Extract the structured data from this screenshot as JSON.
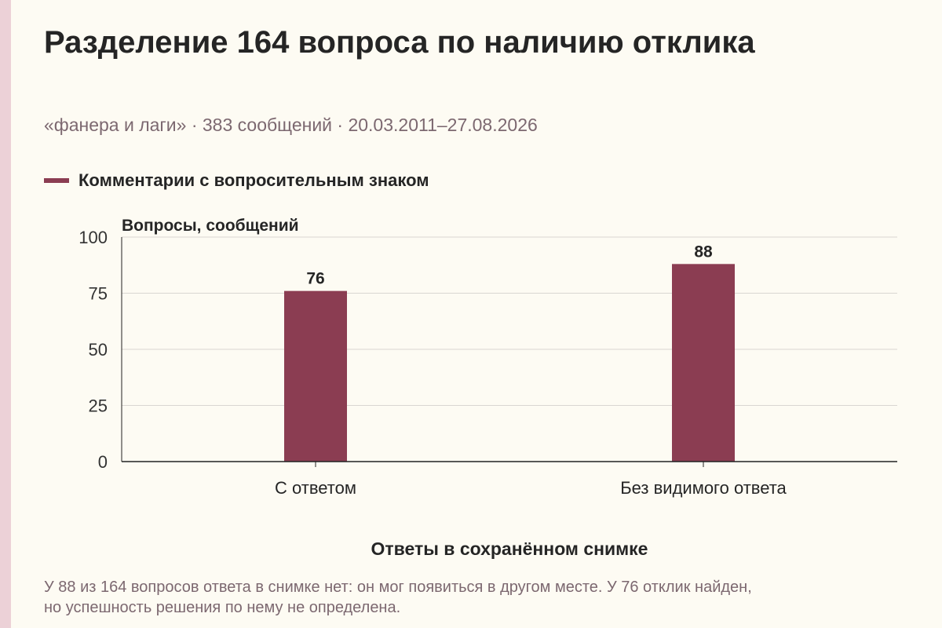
{
  "title": "Разделение 164 вопроса по наличию отклика",
  "subtitle": "«фанера и лаги» · 383 сообщений · 20.03.2011–27.08.2026",
  "colors": {
    "bar": "#8b3d52",
    "grid": "#d9d6d2",
    "axis": "#222222",
    "muted": "#7c6870",
    "background": "#fdfbf3"
  },
  "footnote": {
    "line1": "У 88 из 164 вопросов ответа в снимке нет: он мог появиться в другом месте. У 76 отклик найден,",
    "line2": "но успешность решения по нему не определена."
  },
  "chart_data": {
    "type": "bar",
    "categories": [
      "С ответом",
      "Без видимого ответа"
    ],
    "series": [
      {
        "name": "Комментарии с вопросительным знаком",
        "values": [
          76,
          88
        ]
      }
    ],
    "ylabel": "Вопросы, сообщений",
    "xlabel": "Ответы в сохранённом снимке",
    "ylim": [
      0,
      100
    ],
    "yticks": [
      0,
      25,
      50,
      75,
      100
    ],
    "grid": true,
    "legend": "top-left",
    "data_labels": true
  }
}
